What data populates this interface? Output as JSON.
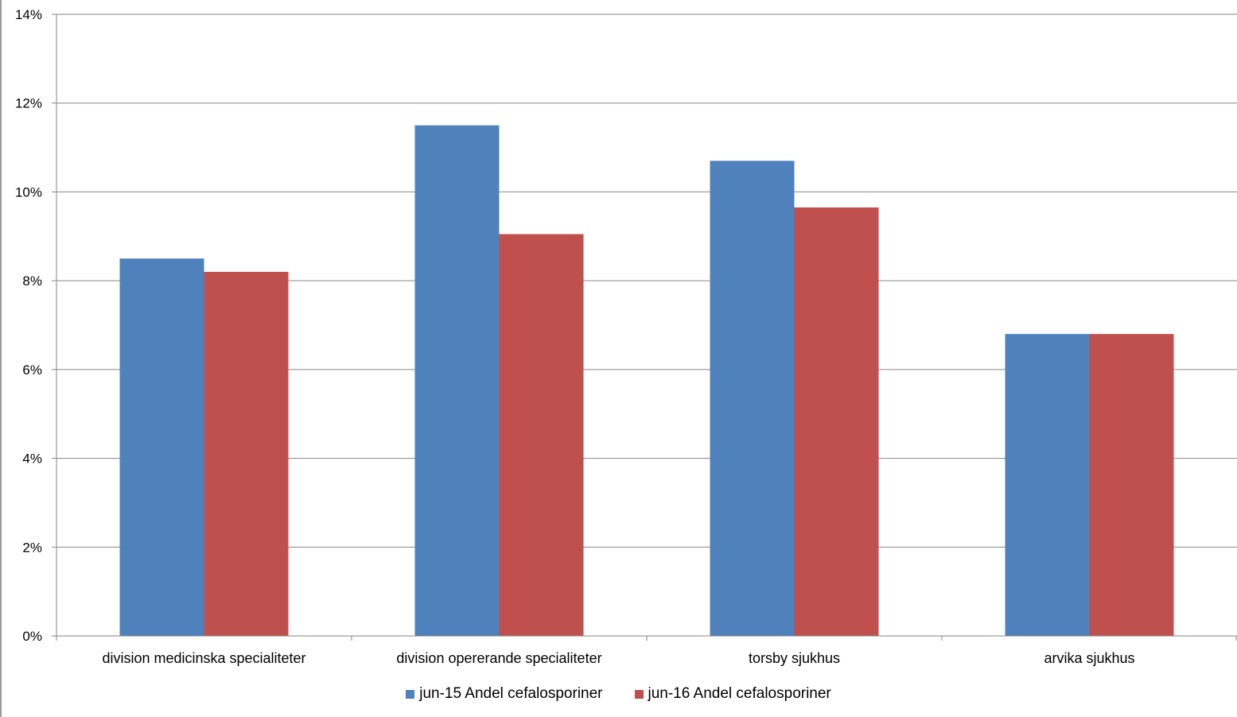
{
  "chart_data": {
    "type": "bar",
    "categories": [
      "division medicinska specialiteter",
      "division opererande specialiteter",
      "torsby sjukhus",
      "arvika sjukhus"
    ],
    "series": [
      {
        "name": "jun-15 Andel cefalosporiner",
        "color": "#4F81BD",
        "values": [
          8.5,
          11.5,
          10.7,
          6.8
        ]
      },
      {
        "name": "jun-16 Andel cefalosporiner",
        "color": "#C0504D",
        "values": [
          8.2,
          9.05,
          9.65,
          6.8
        ]
      }
    ],
    "ylim": [
      0,
      14
    ],
    "yticks": [
      0,
      2,
      4,
      6,
      8,
      10,
      12,
      14
    ],
    "ytick_labels": [
      "0%",
      "2%",
      "4%",
      "6%",
      "8%",
      "10%",
      "12%",
      "14%"
    ],
    "grid": true,
    "legend_position": "bottom"
  }
}
